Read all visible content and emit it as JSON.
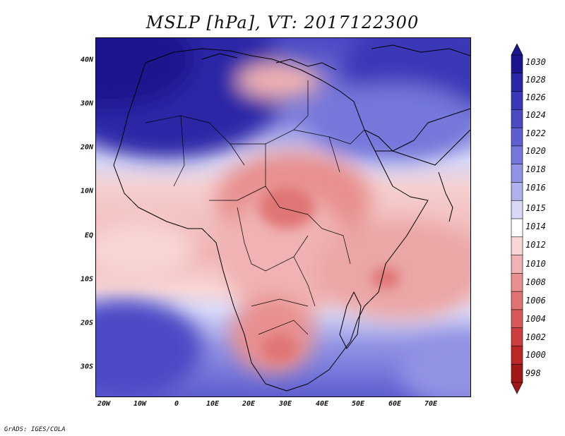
{
  "title": "MSLP [hPa], VT: 2017122300",
  "credit": "GrADS: IGES/COLA",
  "y_axis": {
    "ticks": [
      "40N",
      "30N",
      "20N",
      "10N",
      "EQ",
      "10S",
      "20S",
      "30S"
    ]
  },
  "x_axis": {
    "ticks": [
      "20W",
      "10W",
      "0",
      "10E",
      "20E",
      "30E",
      "40E",
      "50E",
      "60E",
      "70E"
    ]
  },
  "colorbar": {
    "labels": [
      "1030",
      "1028",
      "1026",
      "1024",
      "1022",
      "1020",
      "1018",
      "1016",
      "1015",
      "1014",
      "1012",
      "1010",
      "1008",
      "1006",
      "1004",
      "1002",
      "1000",
      "998"
    ],
    "colors": [
      "#1c168e",
      "#2b27a6",
      "#3a37b8",
      "#4b4ac4",
      "#5d5ed0",
      "#7577da",
      "#9193e4",
      "#b0b2ee",
      "#d8d9f8",
      "#ffffff",
      "#f8d6d6",
      "#f0b2b2",
      "#e89090",
      "#e07474",
      "#d85858",
      "#cc3e3e",
      "#bc2828",
      "#a01818"
    ]
  },
  "map_data": {
    "projection": "lat-lon",
    "lon_range": [
      -22,
      80
    ],
    "lat_range": [
      -36,
      45
    ],
    "variable": "mean sea level pressure (hPa)"
  },
  "colors": {
    "background": "#ffffff",
    "border": "#000000"
  }
}
